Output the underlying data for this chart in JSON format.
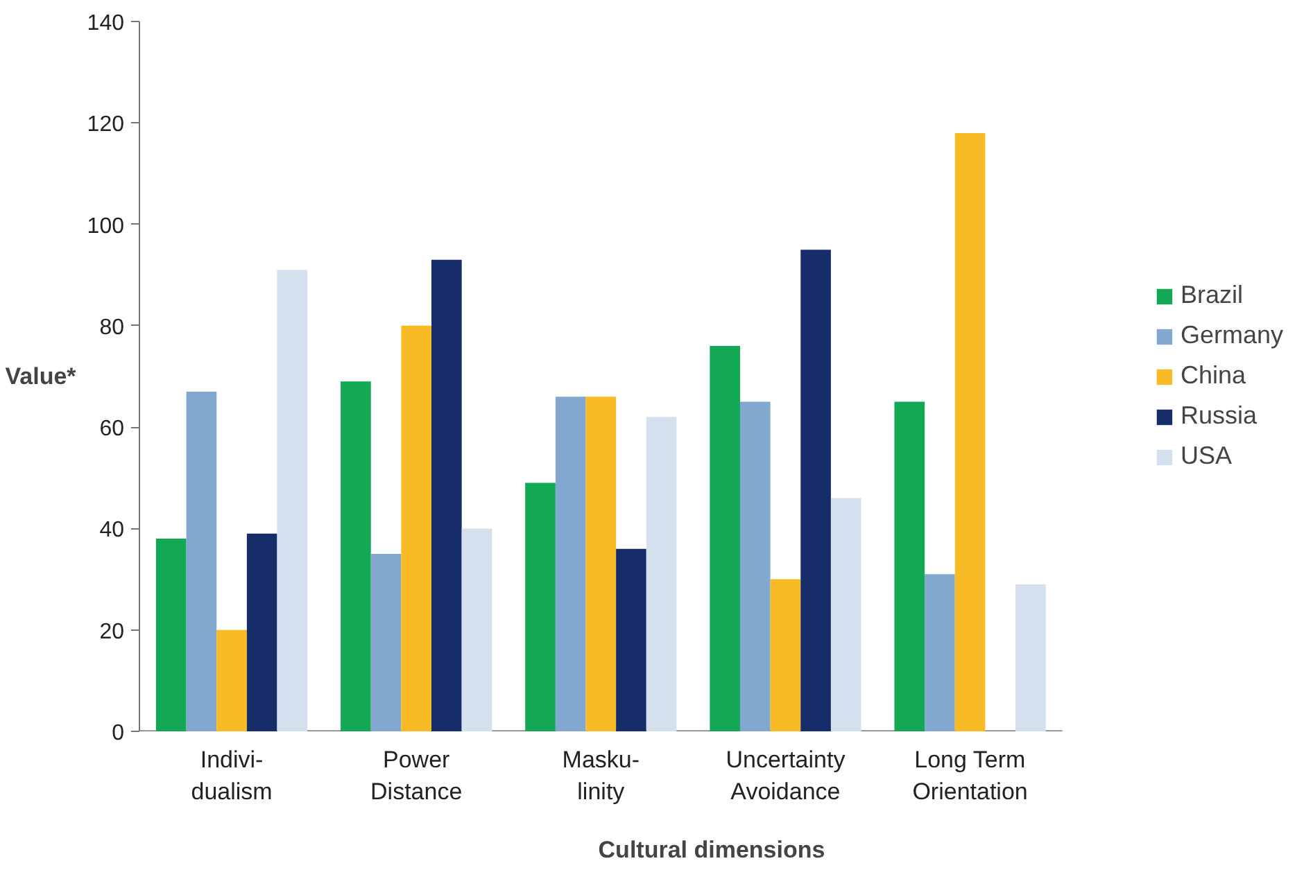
{
  "chart_data": {
    "type": "bar",
    "xlabel": "Cultural dimensions",
    "ylabel": "Value*",
    "categories": [
      "Indivi-\ndualism",
      "Power\nDistance",
      "Masku-\nlinity",
      "Uncertainty\nAvoidance",
      "Long Term\nOrientation"
    ],
    "series": [
      {
        "name": "Brazil",
        "color": "#13a854",
        "values": [
          38,
          69,
          49,
          76,
          65
        ]
      },
      {
        "name": "Germany",
        "color": "#82a8d0",
        "values": [
          67,
          35,
          66,
          65,
          31
        ]
      },
      {
        "name": "China",
        "color": "#f8bb25",
        "values": [
          20,
          80,
          66,
          30,
          118
        ]
      },
      {
        "name": "Russia",
        "color": "#162d69",
        "values": [
          39,
          93,
          36,
          95,
          null
        ]
      },
      {
        "name": "USA",
        "color": "#d5e0ee",
        "values": [
          91,
          40,
          62,
          46,
          29
        ]
      }
    ],
    "ylim": [
      0,
      140
    ],
    "yticks": [
      0,
      20,
      40,
      60,
      80,
      100,
      120,
      140
    ],
    "grid": false,
    "legend": "right"
  }
}
